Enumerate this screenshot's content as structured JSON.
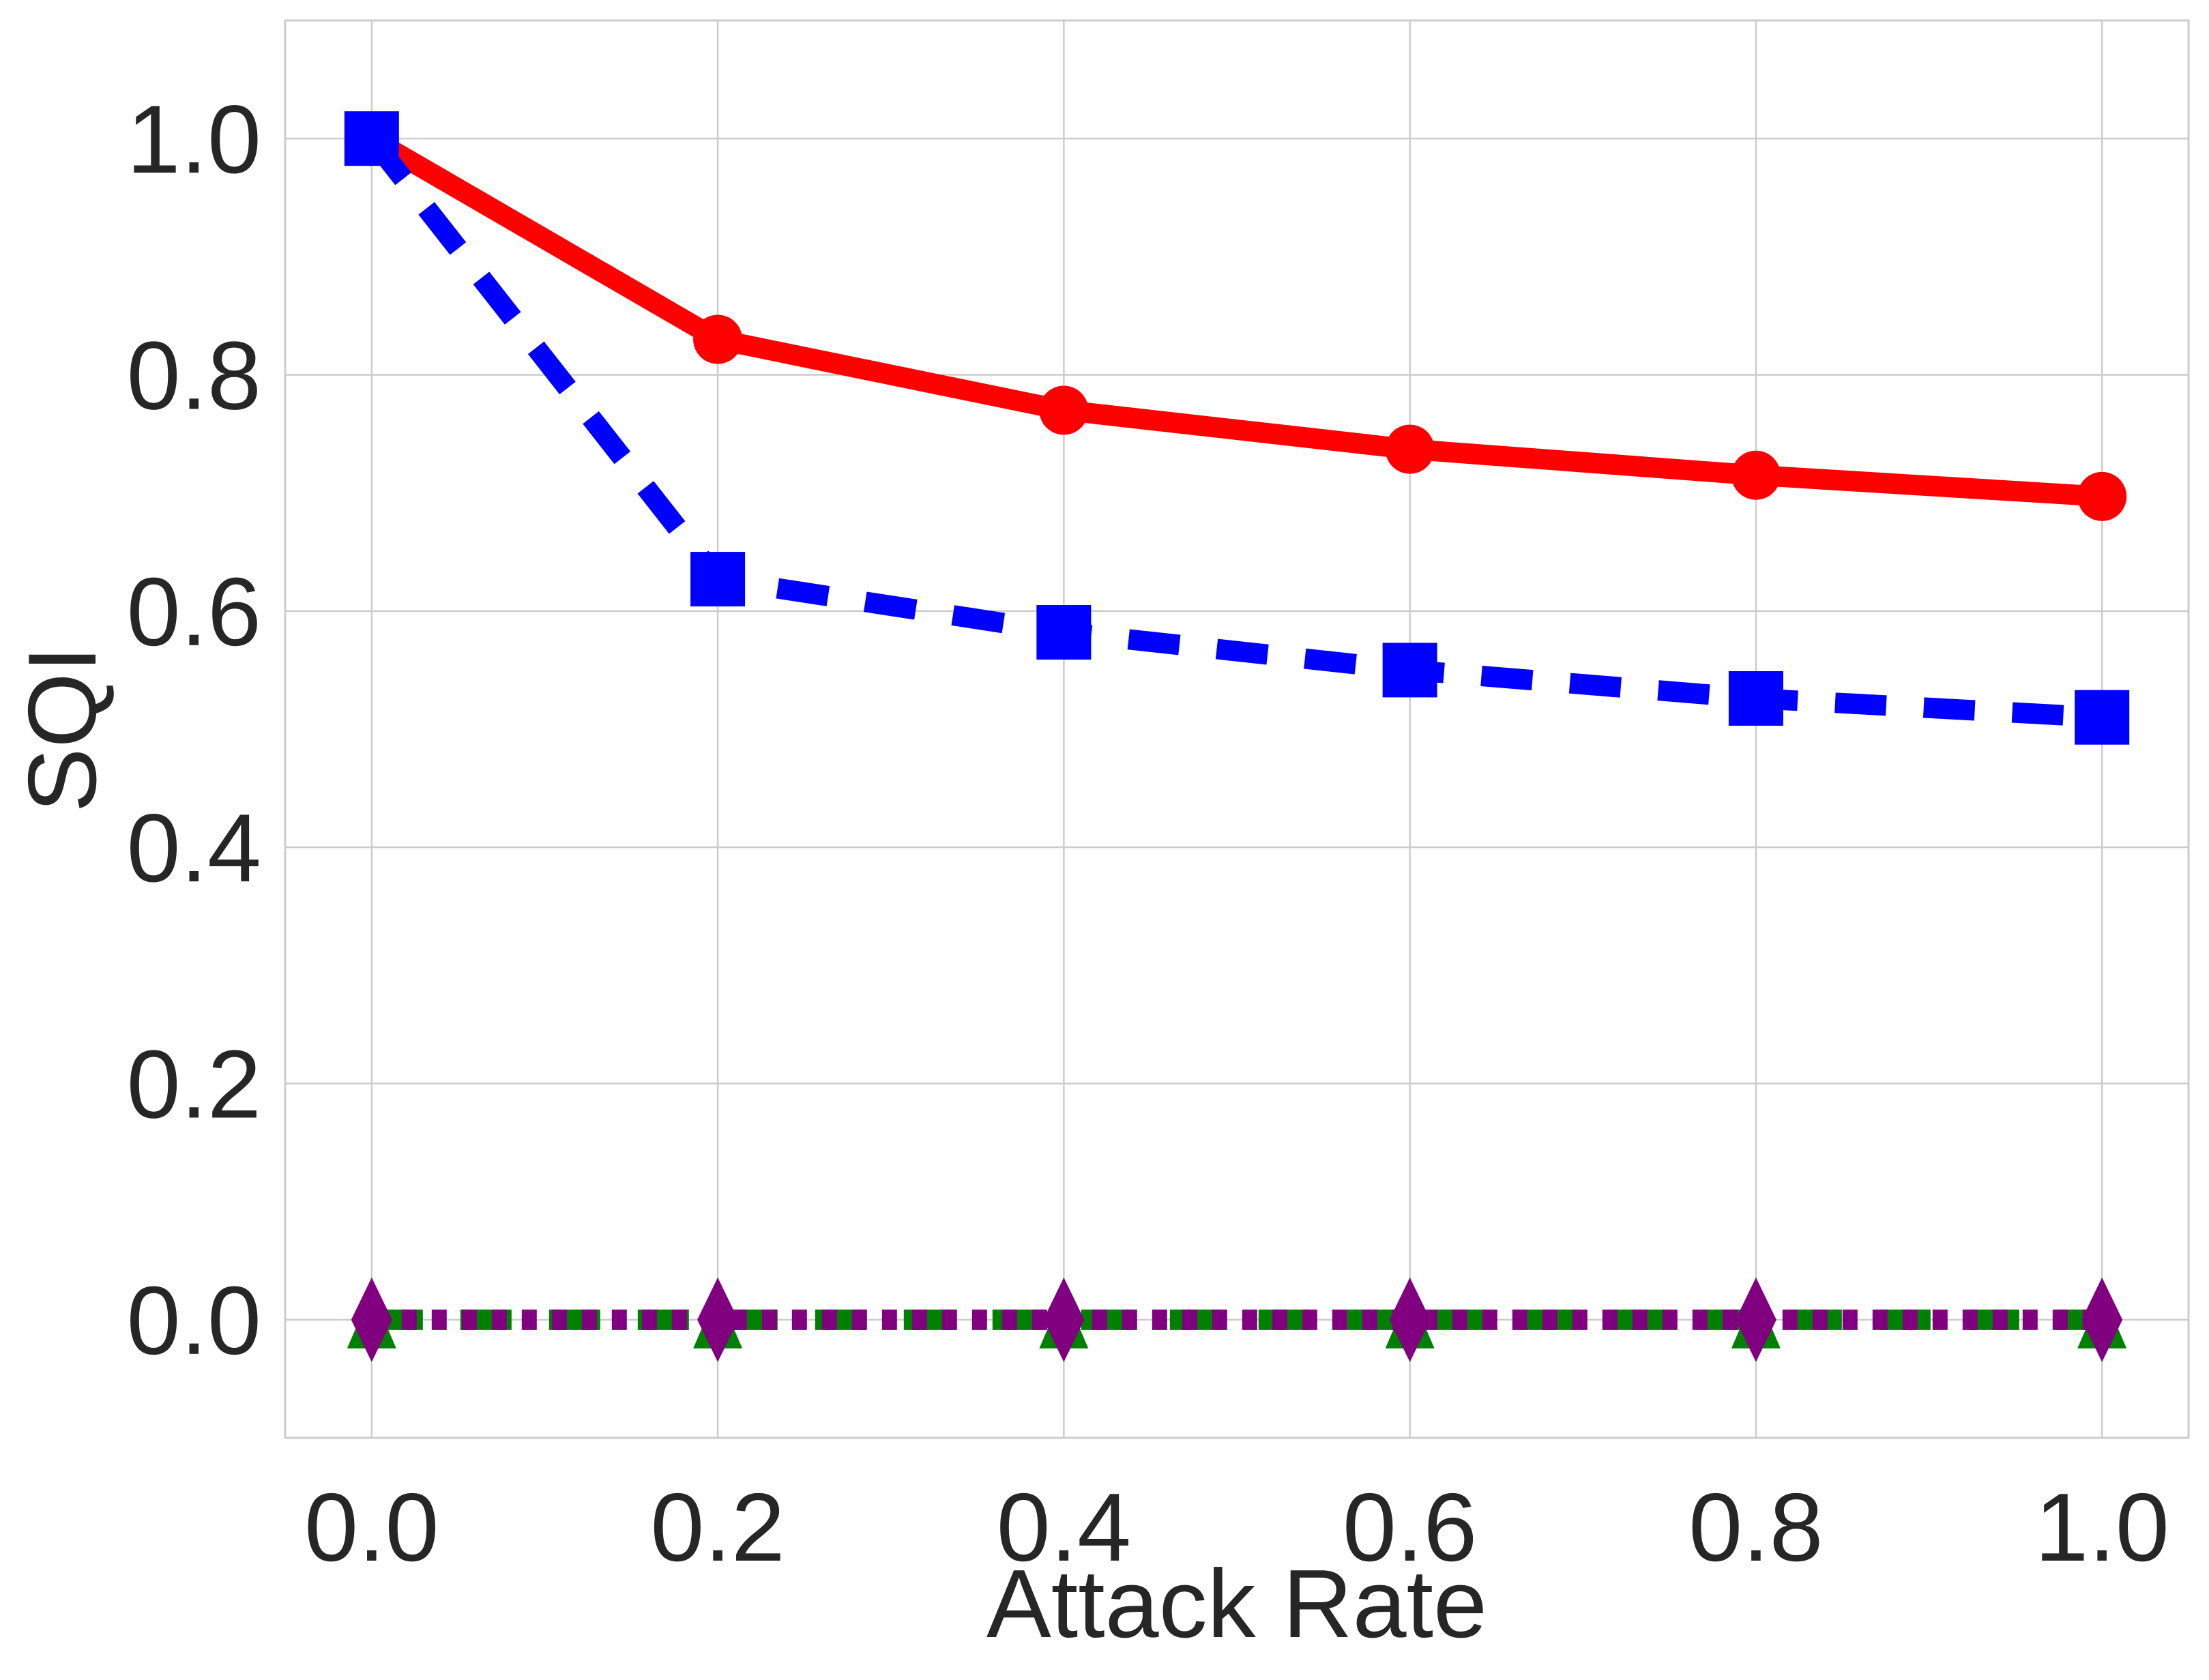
{
  "chart_data": {
    "type": "line",
    "xlabel": "Attack Rate",
    "ylabel": "SQI",
    "xlim": [
      -0.05,
      1.05
    ],
    "ylim": [
      -0.1,
      1.1
    ],
    "xticks": [
      "0.0",
      "0.2",
      "0.4",
      "0.6",
      "0.8",
      "1.0"
    ],
    "yticks": [
      "0.0",
      "0.2",
      "0.4",
      "0.6",
      "0.8",
      "1.0"
    ],
    "grid": true,
    "legend": "none",
    "x": [
      0.0,
      0.2,
      0.4,
      0.6,
      0.8,
      1.0
    ],
    "series": [
      {
        "values": [
          1.0,
          0.83,
          0.77,
          0.737,
          0.715,
          0.697
        ],
        "color": "#ff0000",
        "marker": "circle",
        "linestyle": "solid"
      },
      {
        "values": [
          1.0,
          0.627,
          0.582,
          0.55,
          0.526,
          0.51
        ],
        "color": "#0000ff",
        "marker": "square",
        "linestyle": "dashed"
      },
      {
        "values": [
          0.0,
          0.0,
          0.0,
          0.0,
          0.0,
          0.0
        ],
        "color": "#008000",
        "marker": "triangle",
        "linestyle": "dashed"
      },
      {
        "values": [
          0.0,
          0.0,
          0.0,
          0.0,
          0.0,
          0.0
        ],
        "color": "#800080",
        "marker": "diamond",
        "linestyle": "dotted"
      }
    ]
  }
}
